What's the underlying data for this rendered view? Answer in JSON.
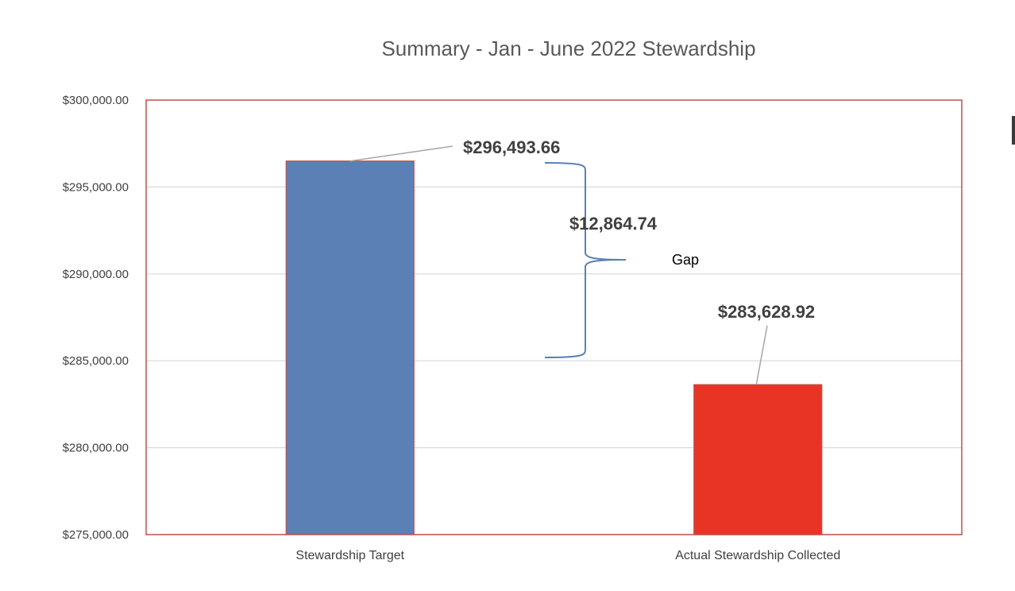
{
  "chart_data": {
    "type": "bar",
    "title": "Summary - Jan - June 2022 Stewardship",
    "categories": [
      "Stewardship Target",
      "Actual Stewardship Collected"
    ],
    "values": [
      296493.66,
      283628.92
    ],
    "data_labels": [
      "$296,493.66",
      "$283,628.92"
    ],
    "bar_colors": [
      "#5a80b6",
      "#e83424"
    ],
    "bar_edge_colors": [
      "#c0504d",
      "#c0504d"
    ],
    "plot_border_color": "#c0504d",
    "ylim": [
      275000,
      300000
    ],
    "y_ticks": [
      275000,
      280000,
      285000,
      290000,
      295000,
      300000
    ],
    "y_tick_labels": [
      "$275,000.00",
      "$280,000.00",
      "$285,000.00",
      "$290,000.00",
      "$295,000.00",
      "$300,000.00"
    ],
    "xlabel": "",
    "ylabel": "",
    "grid": true,
    "legend": "none",
    "annotation": {
      "type": "brace",
      "gap_value_label": "$12,864.74",
      "gap_text": "Gap",
      "color": "#5a80b6"
    }
  }
}
